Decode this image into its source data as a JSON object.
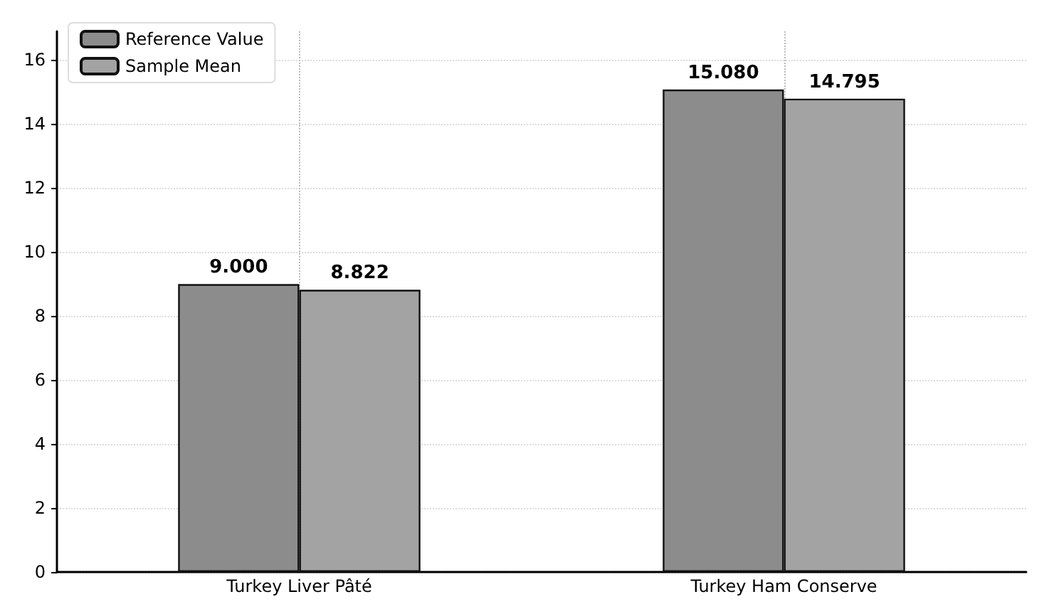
{
  "chart_data": {
    "type": "bar",
    "categories": [
      "Turkey Liver Pâté",
      "Turkey Ham Conserve"
    ],
    "series": [
      {
        "name": "Reference Value",
        "color": "#8c8c8c",
        "values": [
          9.0,
          15.08
        ],
        "value_labels": [
          "9.000",
          "15.080"
        ]
      },
      {
        "name": "Sample Mean",
        "color": "#a3a3a3",
        "values": [
          8.822,
          14.795
        ],
        "value_labels": [
          "8.822",
          "14.795"
        ]
      }
    ],
    "ylim": [
      0,
      16.9
    ],
    "yticks": [
      0,
      2,
      4,
      6,
      8,
      10,
      12,
      14,
      16
    ],
    "grid": true,
    "legend": "top left"
  }
}
